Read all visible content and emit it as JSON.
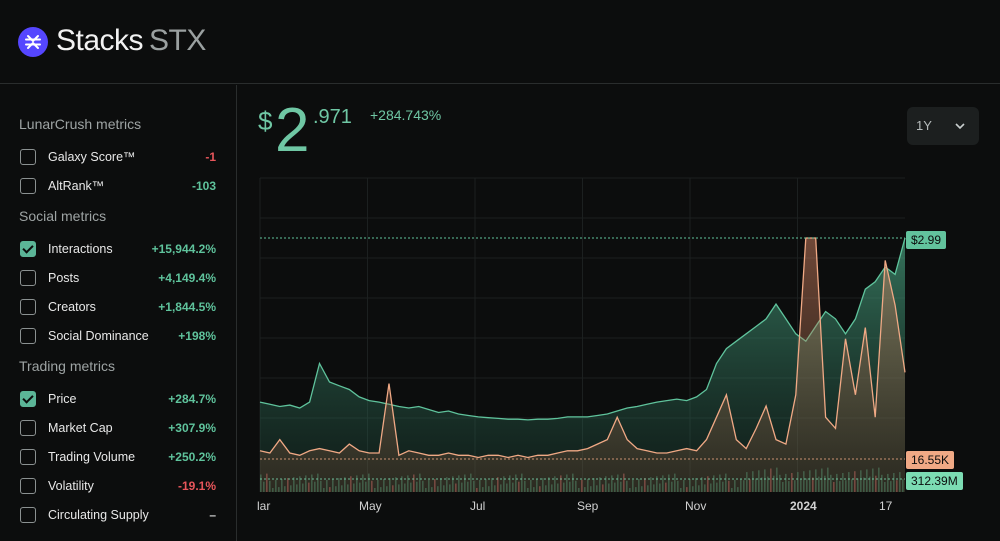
{
  "header": {
    "name": "Stacks",
    "symbol": "STX"
  },
  "sidebar": {
    "sections": [
      {
        "title": "LunarCrush metrics",
        "items": [
          {
            "label": "Galaxy Score™",
            "value": "-1",
            "checked": false,
            "tone": "neg"
          },
          {
            "label": "AltRank™",
            "value": "-103",
            "checked": false,
            "tone": "pos"
          }
        ]
      },
      {
        "title": "Social metrics",
        "items": [
          {
            "label": "Interactions",
            "value": "+15,944.2%",
            "checked": true,
            "tone": "pos"
          },
          {
            "label": "Posts",
            "value": "+4,149.4%",
            "checked": false,
            "tone": "pos"
          },
          {
            "label": "Creators",
            "value": "+1,844.5%",
            "checked": false,
            "tone": "pos"
          },
          {
            "label": "Social Dominance",
            "value": "+198%",
            "checked": false,
            "tone": "pos"
          }
        ]
      },
      {
        "title": "Trading metrics",
        "items": [
          {
            "label": "Price",
            "value": "+284.7%",
            "checked": true,
            "tone": "pos"
          },
          {
            "label": "Market Cap",
            "value": "+307.9%",
            "checked": false,
            "tone": "pos"
          },
          {
            "label": "Trading Volume",
            "value": "+250.2%",
            "checked": false,
            "tone": "pos"
          },
          {
            "label": "Volatility",
            "value": "-19.1%",
            "checked": false,
            "tone": "neg"
          },
          {
            "label": "Circulating Supply",
            "value": "–",
            "checked": false,
            "tone": "neu"
          }
        ]
      }
    ]
  },
  "price": {
    "currency": "$",
    "integer": "2",
    "decimal": ".971",
    "change": "+284.743%"
  },
  "range_selector": {
    "value": "1Y"
  },
  "chart_data": {
    "type": "area",
    "x_tick_labels": [
      "lar",
      "May",
      "Jul",
      "Sep",
      "Nov",
      "2024",
      "17"
    ],
    "price_last_label": "$2.99",
    "interactions_last_label": "16.55K",
    "volume_last_label": "312.39M",
    "series": [
      {
        "name": "Price",
        "color": "#5fc39c",
        "values": [
          0.78,
          0.75,
          0.72,
          0.74,
          0.7,
          0.78,
          1.3,
          1.05,
          1.0,
          0.95,
          0.85,
          0.8,
          0.78,
          0.75,
          0.72,
          0.7,
          0.72,
          0.68,
          0.64,
          0.66,
          0.62,
          0.6,
          0.58,
          0.57,
          0.56,
          0.55,
          0.55,
          0.54,
          0.55,
          0.55,
          0.56,
          0.58,
          0.58,
          0.58,
          0.6,
          0.62,
          0.66,
          0.7,
          0.72,
          0.75,
          0.78,
          0.8,
          0.82,
          0.8,
          0.85,
          0.95,
          1.3,
          1.5,
          1.6,
          1.7,
          1.8,
          1.9,
          2.1,
          1.9,
          1.7,
          1.6,
          1.8,
          2.0,
          1.9,
          1.7,
          1.9,
          2.3,
          2.4,
          2.6,
          2.5,
          2.99
        ]
      },
      {
        "name": "Interactions",
        "color": "#f0a985",
        "values": [
          0.05,
          0.04,
          0.1,
          0.04,
          0.03,
          0.05,
          0.06,
          0.05,
          0.04,
          0.08,
          0.05,
          0.04,
          0.04,
          0.35,
          0.03,
          0.05,
          0.04,
          0.03,
          0.03,
          0.04,
          0.03,
          0.03,
          0.02,
          0.03,
          0.03,
          0.02,
          0.03,
          0.02,
          0.03,
          0.03,
          0.04,
          0.05,
          0.05,
          0.06,
          0.08,
          0.1,
          0.2,
          0.1,
          0.06,
          0.05,
          0.04,
          0.04,
          0.05,
          0.06,
          0.05,
          0.1,
          0.2,
          0.3,
          0.1,
          0.06,
          0.15,
          0.25,
          0.1,
          0.08,
          0.3,
          1.0,
          1.0,
          0.2,
          0.15,
          0.55,
          0.3,
          0.6,
          0.2,
          0.9,
          0.7,
          0.4
        ]
      },
      {
        "name": "Volume",
        "color": "#7cdcb3"
      }
    ]
  }
}
